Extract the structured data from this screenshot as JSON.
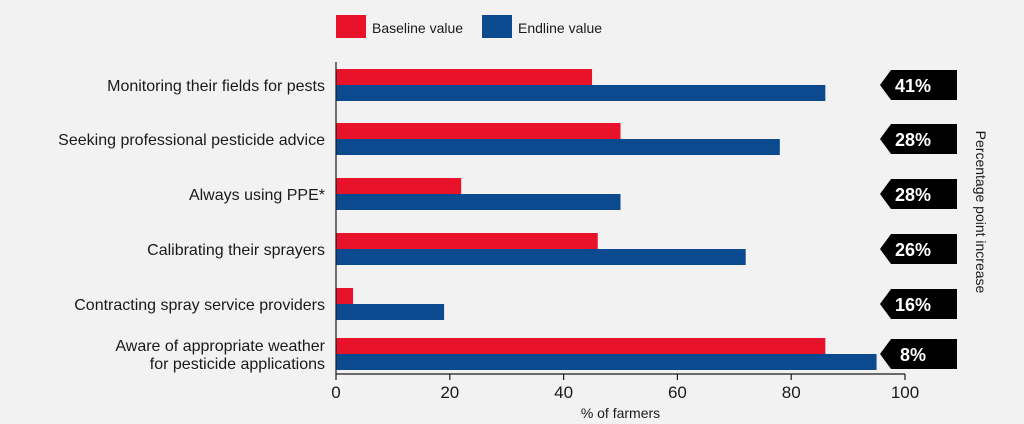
{
  "chart_data": {
    "type": "bar",
    "orientation": "horizontal",
    "categories": [
      [
        "Monitoring their fields for pests"
      ],
      [
        "Seeking professional pesticide advice"
      ],
      [
        "Always using PPE*"
      ],
      [
        "Calibrating their sprayers"
      ],
      [
        "Contracting spray service providers"
      ],
      [
        "Aware of appropriate weather",
        "for pesticide applications"
      ]
    ],
    "series": [
      {
        "name": "Baseline value",
        "color": "#e8132a",
        "values": [
          45,
          50,
          22,
          46,
          3,
          86
        ]
      },
      {
        "name": "Endline value",
        "color": "#0b4a8f",
        "values": [
          86,
          78,
          50,
          72,
          19,
          95
        ]
      }
    ],
    "xlabel": "% of farmers",
    "xlim": [
      0,
      100
    ],
    "xticks": [
      0,
      20,
      40,
      60,
      80,
      100
    ],
    "grid": false,
    "legend": "top",
    "annotations": {
      "title": "Percentage point increase",
      "badge_color": "#000000",
      "values": [
        "41%",
        "28%",
        "28%",
        "26%",
        "16%",
        "8%"
      ]
    }
  }
}
